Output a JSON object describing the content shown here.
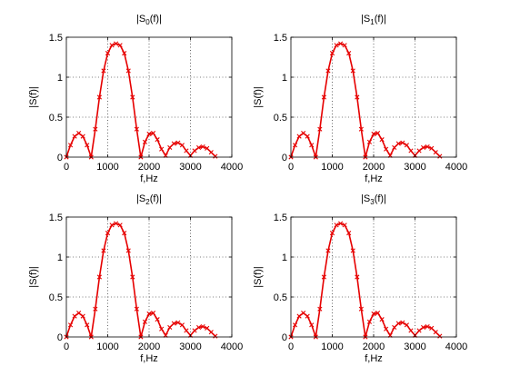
{
  "figure": {
    "background": "#ffffff",
    "line_color": "#e60000",
    "axis_color": "#000000",
    "grid_color": "#000000"
  },
  "chart_data": [
    {
      "type": "line",
      "title": "|S_0(f)|",
      "title_main": "|S",
      "title_sub": "0",
      "title_end": "(f)|",
      "xlabel": "f,Hz",
      "ylabel": "|S(f)|",
      "xlim": [
        0,
        4000
      ],
      "ylim": [
        0,
        1.5
      ],
      "xticks": [
        "0",
        "1000",
        "2000",
        "3000",
        "4000"
      ],
      "yticks": [
        "0",
        "0.5",
        "1",
        "1.5"
      ],
      "grid": true,
      "marker": "x",
      "series": [
        {
          "x": [
            0,
            100,
            200,
            300,
            400,
            500,
            600,
            700,
            800,
            900,
            1000,
            1100,
            1200,
            1300,
            1400,
            1500,
            1600,
            1700,
            1800,
            1900,
            2000,
            2100,
            2200,
            2300,
            2400,
            2500,
            2600,
            2700,
            2800,
            2900,
            3000,
            3100,
            3200,
            3300,
            3400,
            3500,
            3600
          ],
          "values": [
            0.0,
            0.15,
            0.26,
            0.3,
            0.26,
            0.15,
            0.0,
            0.35,
            0.75,
            1.08,
            1.3,
            1.4,
            1.42,
            1.4,
            1.3,
            1.08,
            0.75,
            0.35,
            0.0,
            0.19,
            0.29,
            0.3,
            0.22,
            0.1,
            0.02,
            0.12,
            0.17,
            0.18,
            0.15,
            0.08,
            0.02,
            0.08,
            0.12,
            0.13,
            0.11,
            0.06,
            0.01
          ]
        }
      ]
    },
    {
      "type": "line",
      "title": "|S_1(f)|",
      "title_main": "|S",
      "title_sub": "1",
      "title_end": "(f)|",
      "xlabel": "f,Hz",
      "ylabel": "|S(f)|",
      "xlim": [
        0,
        4000
      ],
      "ylim": [
        0,
        1.5
      ],
      "xticks": [
        "0",
        "1000",
        "2000",
        "3000",
        "4000"
      ],
      "yticks": [
        "0",
        "0.5",
        "1",
        "1.5"
      ],
      "grid": true,
      "marker": "x",
      "series": [
        {
          "x": [
            0,
            100,
            200,
            300,
            400,
            500,
            600,
            700,
            800,
            900,
            1000,
            1100,
            1200,
            1300,
            1400,
            1500,
            1600,
            1700,
            1800,
            1900,
            2000,
            2100,
            2200,
            2300,
            2400,
            2500,
            2600,
            2700,
            2800,
            2900,
            3000,
            3100,
            3200,
            3300,
            3400,
            3500,
            3600
          ],
          "values": [
            0.0,
            0.15,
            0.26,
            0.3,
            0.26,
            0.15,
            0.0,
            0.35,
            0.75,
            1.08,
            1.3,
            1.4,
            1.42,
            1.4,
            1.3,
            1.08,
            0.75,
            0.35,
            0.0,
            0.19,
            0.29,
            0.3,
            0.22,
            0.1,
            0.02,
            0.12,
            0.17,
            0.18,
            0.15,
            0.08,
            0.02,
            0.08,
            0.12,
            0.13,
            0.11,
            0.06,
            0.01
          ]
        }
      ]
    },
    {
      "type": "line",
      "title": "|S_2(f)|",
      "title_main": "|S",
      "title_sub": "2",
      "title_end": "(f)|",
      "xlabel": "f,Hz",
      "ylabel": "|S(f)|",
      "xlim": [
        0,
        4000
      ],
      "ylim": [
        0,
        1.5
      ],
      "xticks": [
        "0",
        "1000",
        "2000",
        "3000",
        "4000"
      ],
      "yticks": [
        "0",
        "0.5",
        "1",
        "1.5"
      ],
      "grid": true,
      "marker": "x",
      "series": [
        {
          "x": [
            0,
            100,
            200,
            300,
            400,
            500,
            600,
            700,
            800,
            900,
            1000,
            1100,
            1200,
            1300,
            1400,
            1500,
            1600,
            1700,
            1800,
            1900,
            2000,
            2100,
            2200,
            2300,
            2400,
            2500,
            2600,
            2700,
            2800,
            2900,
            3000,
            3100,
            3200,
            3300,
            3400,
            3500,
            3600
          ],
          "values": [
            0.0,
            0.15,
            0.26,
            0.3,
            0.26,
            0.15,
            0.0,
            0.35,
            0.75,
            1.08,
            1.3,
            1.4,
            1.42,
            1.4,
            1.3,
            1.08,
            0.75,
            0.35,
            0.0,
            0.19,
            0.29,
            0.3,
            0.22,
            0.1,
            0.02,
            0.12,
            0.17,
            0.18,
            0.15,
            0.08,
            0.02,
            0.08,
            0.12,
            0.13,
            0.11,
            0.06,
            0.01
          ]
        }
      ]
    },
    {
      "type": "line",
      "title": "|S_3(f)|",
      "title_main": "|S",
      "title_sub": "3",
      "title_end": "(f)|",
      "xlabel": "f,Hz",
      "ylabel": "|S(f)|",
      "xlim": [
        0,
        4000
      ],
      "ylim": [
        0,
        1.5
      ],
      "xticks": [
        "0",
        "1000",
        "2000",
        "3000",
        "4000"
      ],
      "yticks": [
        "0",
        "0.5",
        "1",
        "1.5"
      ],
      "grid": true,
      "marker": "x",
      "series": [
        {
          "x": [
            0,
            100,
            200,
            300,
            400,
            500,
            600,
            700,
            800,
            900,
            1000,
            1100,
            1200,
            1300,
            1400,
            1500,
            1600,
            1700,
            1800,
            1900,
            2000,
            2100,
            2200,
            2300,
            2400,
            2500,
            2600,
            2700,
            2800,
            2900,
            3000,
            3100,
            3200,
            3300,
            3400,
            3500,
            3600
          ],
          "values": [
            0.0,
            0.15,
            0.26,
            0.3,
            0.26,
            0.15,
            0.0,
            0.35,
            0.75,
            1.08,
            1.3,
            1.4,
            1.42,
            1.4,
            1.3,
            1.08,
            0.75,
            0.35,
            0.0,
            0.19,
            0.29,
            0.3,
            0.22,
            0.1,
            0.02,
            0.12,
            0.17,
            0.18,
            0.15,
            0.08,
            0.02,
            0.08,
            0.12,
            0.13,
            0.11,
            0.06,
            0.01
          ]
        }
      ]
    }
  ]
}
